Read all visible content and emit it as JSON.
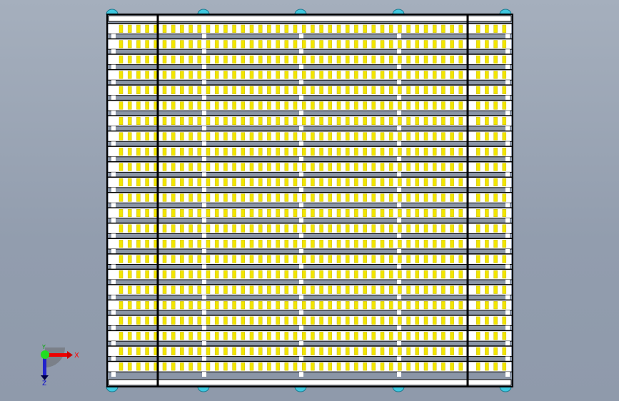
{
  "viewport": {
    "model": "roller-conveyor-top-view",
    "row_count": 23
  },
  "colors": {
    "roller": "#f2e600",
    "frame": "#000000",
    "band": "#ffffff",
    "gap": "#8b96a7",
    "caster": "#3fc8e0"
  },
  "triad": {
    "x_label": "X",
    "y_label": "Y",
    "z_label": "Z",
    "x_color": "#ff0000",
    "y_color": "#00cc00",
    "z_color": "#0000cc"
  }
}
